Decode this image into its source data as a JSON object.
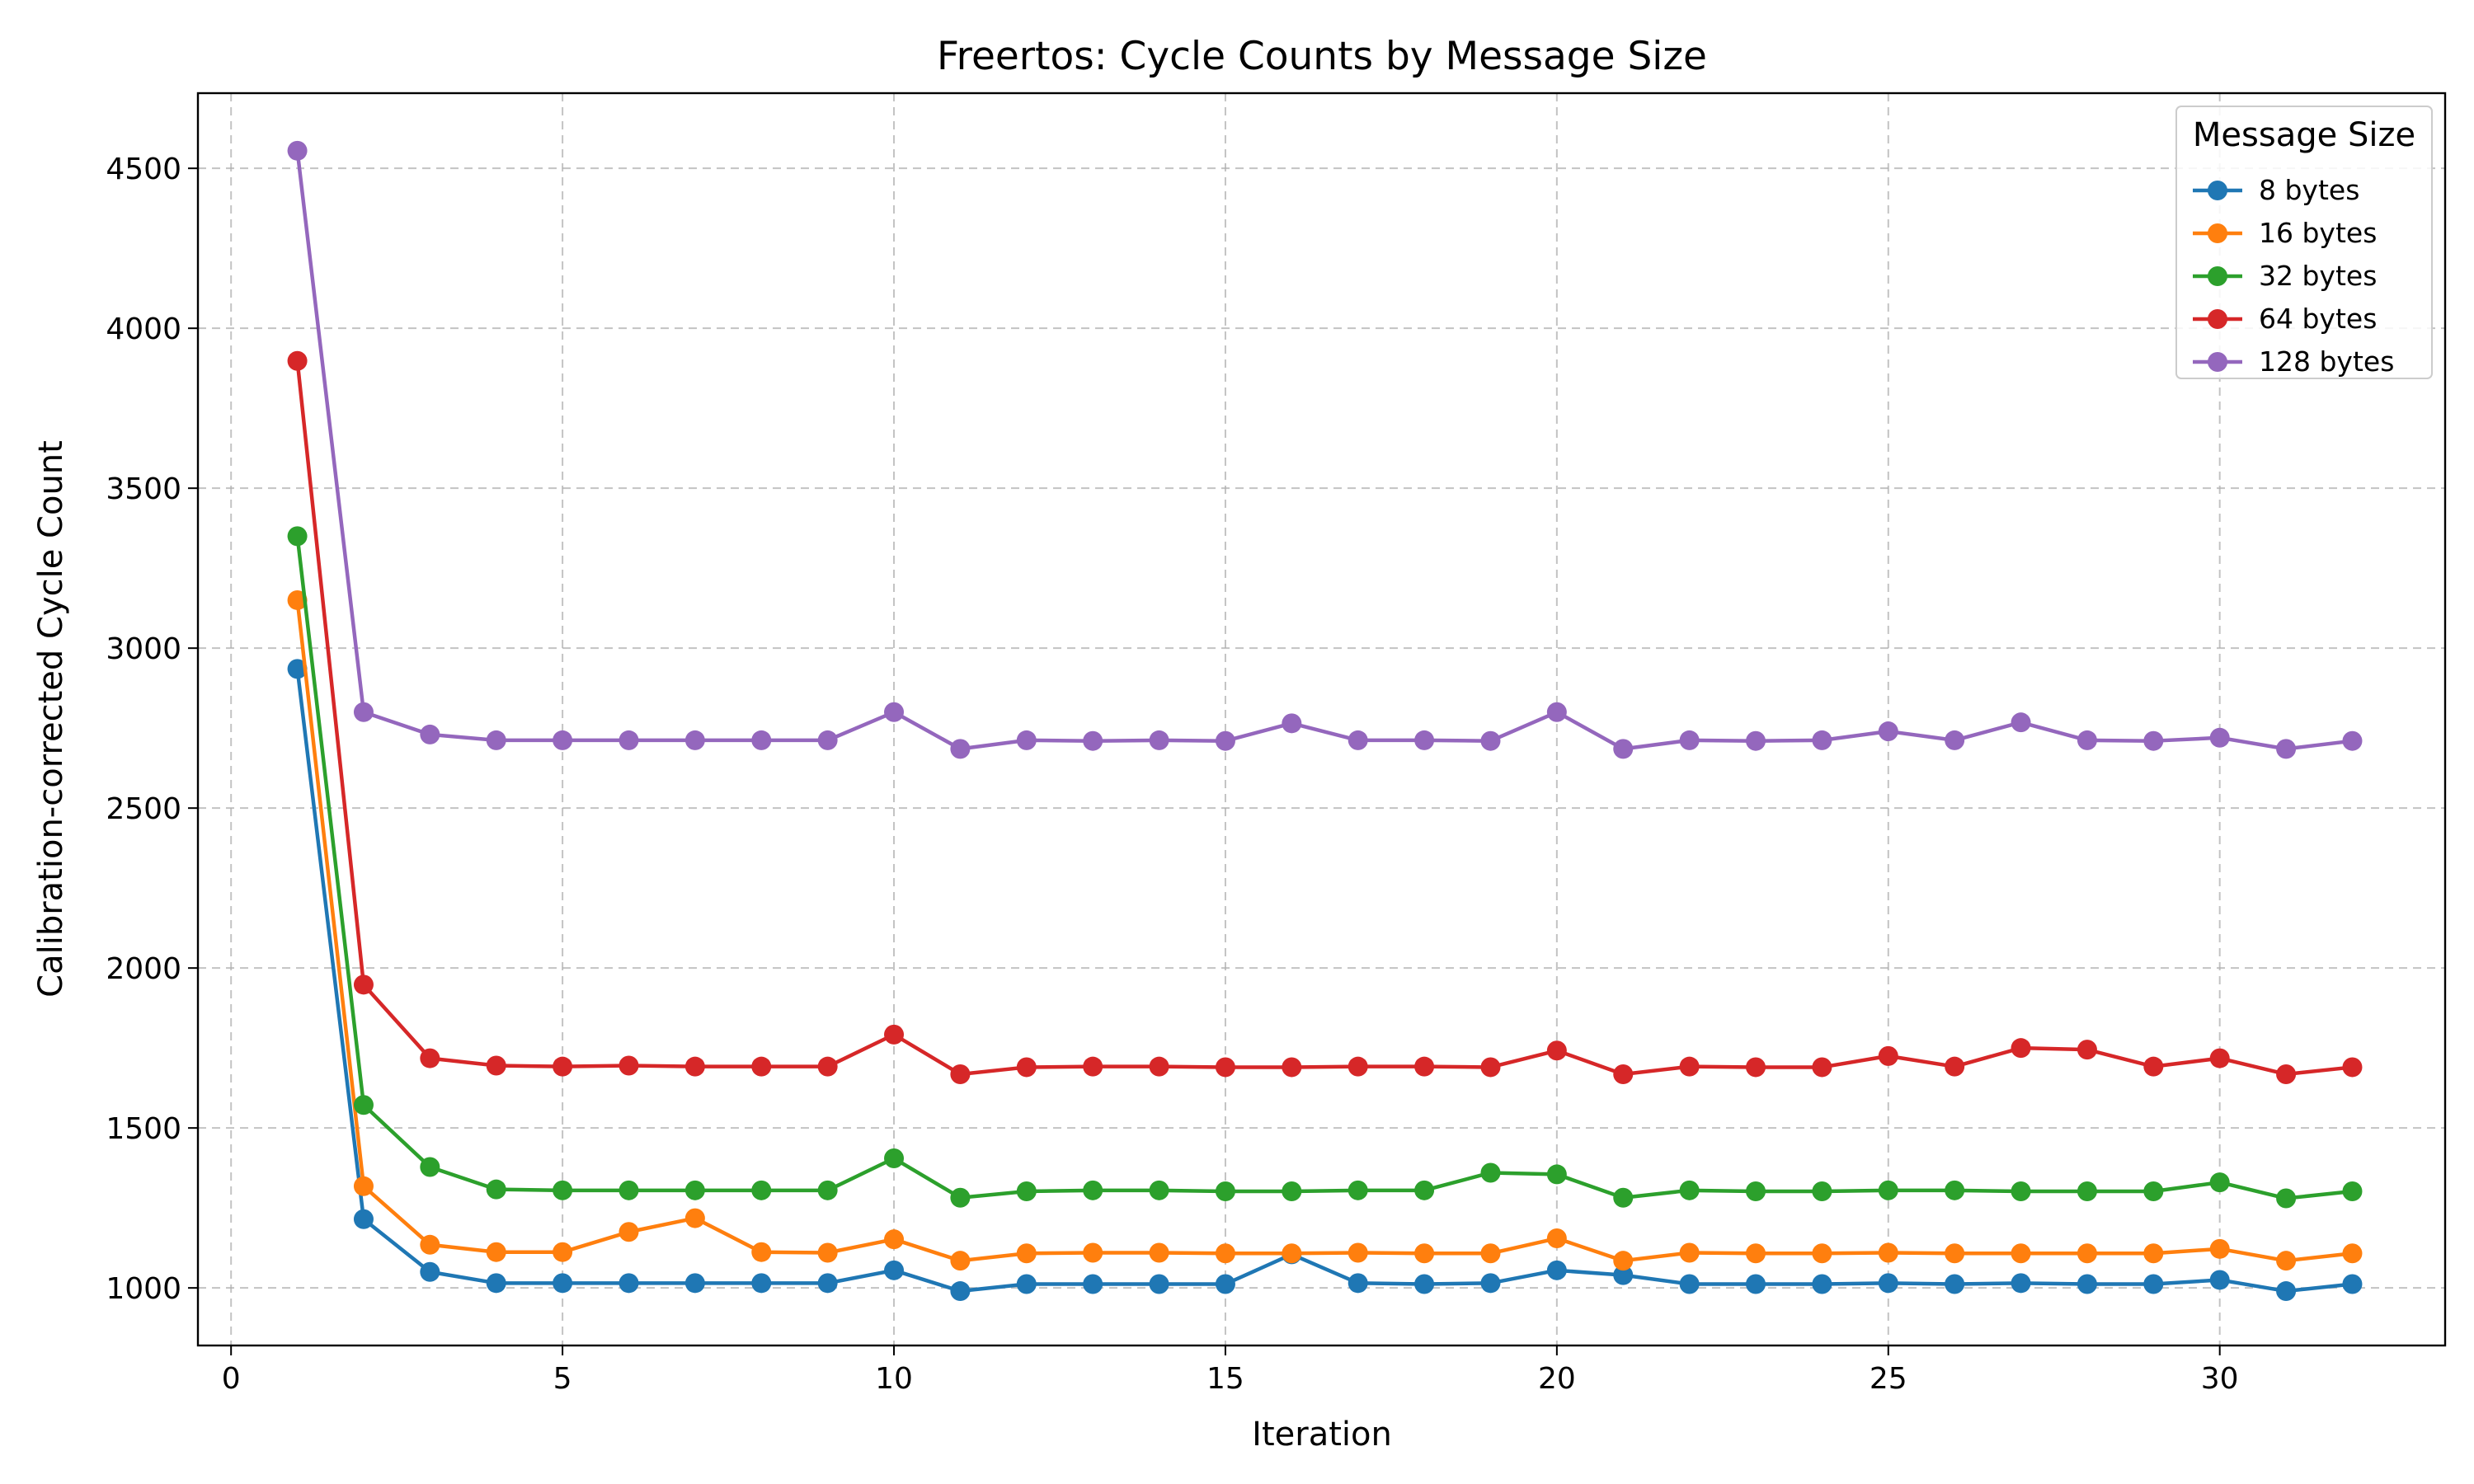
{
  "chart_data": {
    "type": "line",
    "title": "Freertos: Cycle Counts by Message Size",
    "xlabel": "Iteration",
    "ylabel": "Calibration-corrected Cycle Count",
    "xlim": [
      -0.5,
      33.4
    ],
    "ylim": [
      820,
      4735
    ],
    "xticks": [
      0,
      5,
      10,
      15,
      20,
      25,
      30
    ],
    "yticks": [
      1000,
      1500,
      2000,
      2500,
      3000,
      3500,
      4000,
      4500
    ],
    "grid": true,
    "legend": {
      "title": "Message Size",
      "placement": "top-right"
    },
    "x": [
      1,
      2,
      3,
      4,
      5,
      6,
      7,
      8,
      9,
      10,
      11,
      12,
      13,
      14,
      15,
      16,
      17,
      18,
      19,
      20,
      21,
      22,
      23,
      24,
      25,
      26,
      27,
      28,
      29,
      30,
      31,
      32
    ],
    "series": [
      {
        "name": "8 bytes",
        "color": "#1f77b4",
        "values": [
          2935,
          1215,
          1050,
          1015,
          1015,
          1015,
          1015,
          1015,
          1015,
          1055,
          990,
          1012,
          1012,
          1012,
          1012,
          1105,
          1015,
          1012,
          1015,
          1055,
          1040,
          1012,
          1012,
          1012,
          1015,
          1012,
          1015,
          1012,
          1012,
          1025,
          990,
          1012
        ]
      },
      {
        "name": "16 bytes",
        "color": "#ff7f0e",
        "values": [
          3150,
          1318,
          1135,
          1112,
          1112,
          1175,
          1218,
          1112,
          1110,
          1152,
          1085,
          1108,
          1110,
          1110,
          1108,
          1108,
          1110,
          1108,
          1108,
          1155,
          1085,
          1110,
          1108,
          1108,
          1110,
          1108,
          1108,
          1108,
          1108,
          1122,
          1085,
          1108
        ]
      },
      {
        "name": "32 bytes",
        "color": "#2ca02c",
        "values": [
          3350,
          1572,
          1378,
          1308,
          1305,
          1305,
          1305,
          1305,
          1305,
          1405,
          1282,
          1302,
          1305,
          1305,
          1302,
          1302,
          1305,
          1305,
          1360,
          1355,
          1282,
          1305,
          1302,
          1302,
          1305,
          1305,
          1302,
          1302,
          1302,
          1330,
          1280,
          1302
        ]
      },
      {
        "name": "64 bytes",
        "color": "#d62728",
        "values": [
          3898,
          1948,
          1718,
          1695,
          1692,
          1695,
          1692,
          1692,
          1692,
          1792,
          1668,
          1690,
          1692,
          1692,
          1690,
          1690,
          1692,
          1692,
          1690,
          1742,
          1668,
          1692,
          1690,
          1690,
          1725,
          1692,
          1750,
          1745,
          1692,
          1718,
          1668,
          1690
        ]
      },
      {
        "name": "128 bytes",
        "color": "#9467bd",
        "values": [
          4555,
          2800,
          2730,
          2712,
          2712,
          2712,
          2712,
          2712,
          2712,
          2800,
          2685,
          2712,
          2710,
          2712,
          2710,
          2765,
          2712,
          2712,
          2710,
          2800,
          2685,
          2712,
          2710,
          2712,
          2740,
          2712,
          2768,
          2712,
          2710,
          2720,
          2685,
          2710
        ]
      }
    ]
  }
}
